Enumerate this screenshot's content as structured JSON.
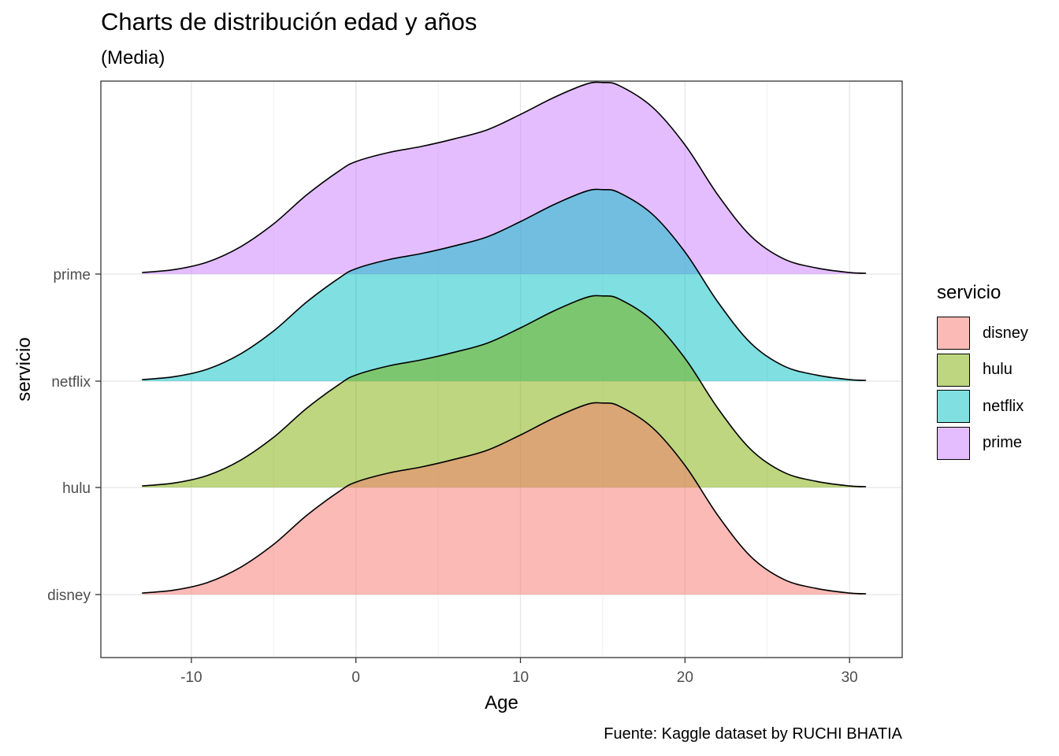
{
  "title": "Charts de distribución edad y años",
  "subtitle": "(Media)",
  "caption": "Fuente: Kaggle dataset by RUCHI BHATIA",
  "colors": {
    "disney": "#F8766D",
    "hulu": "#7CAE00",
    "netflix": "#00BFC4",
    "prime": "#C77CFF"
  },
  "chart_data": {
    "type": "area",
    "subtype": "ridgeline density",
    "title": "Charts de distribución edad y años",
    "subtitle": "(Media)",
    "xlabel": "Age",
    "ylabel": "servicio",
    "xlim": [
      -15.5,
      33.2
    ],
    "xticks": [
      -10,
      0,
      10,
      20,
      30
    ],
    "xtick_labels": [
      "-10",
      "0",
      "10",
      "20",
      "30"
    ],
    "categories": [
      "disney",
      "hulu",
      "netflix",
      "prime"
    ],
    "grid": true,
    "legend": {
      "title": "servicio",
      "position": "right",
      "entries": [
        "disney",
        "hulu",
        "netflix",
        "prime"
      ]
    },
    "caption": "Fuente: Kaggle dataset by RUCHI BHATIA",
    "density_x": [
      -13,
      -11,
      -9,
      -7,
      -5,
      -3,
      -1,
      0,
      2,
      4,
      6,
      8,
      10,
      12,
      14,
      15,
      16,
      18,
      20,
      22,
      24,
      26,
      28,
      30,
      31
    ],
    "series": [
      {
        "name": "disney",
        "density": [
          0.01,
          0.03,
          0.08,
          0.18,
          0.33,
          0.52,
          0.68,
          0.74,
          0.8,
          0.84,
          0.89,
          0.95,
          1.05,
          1.16,
          1.25,
          1.26,
          1.24,
          1.1,
          0.85,
          0.52,
          0.25,
          0.1,
          0.04,
          0.01,
          0.005
        ]
      },
      {
        "name": "hulu",
        "density": [
          0.01,
          0.03,
          0.08,
          0.18,
          0.33,
          0.52,
          0.68,
          0.74,
          0.8,
          0.84,
          0.89,
          0.95,
          1.05,
          1.16,
          1.25,
          1.26,
          1.24,
          1.1,
          0.85,
          0.52,
          0.25,
          0.1,
          0.04,
          0.01,
          0.005
        ]
      },
      {
        "name": "netflix",
        "density": [
          0.01,
          0.03,
          0.08,
          0.18,
          0.33,
          0.52,
          0.68,
          0.74,
          0.8,
          0.84,
          0.89,
          0.95,
          1.05,
          1.16,
          1.25,
          1.26,
          1.24,
          1.1,
          0.85,
          0.52,
          0.25,
          0.1,
          0.04,
          0.01,
          0.005
        ]
      },
      {
        "name": "prime",
        "density": [
          0.01,
          0.03,
          0.08,
          0.18,
          0.33,
          0.52,
          0.68,
          0.74,
          0.8,
          0.84,
          0.89,
          0.95,
          1.05,
          1.16,
          1.25,
          1.26,
          1.24,
          1.1,
          0.85,
          0.52,
          0.25,
          0.1,
          0.04,
          0.01,
          0.005
        ]
      }
    ]
  }
}
